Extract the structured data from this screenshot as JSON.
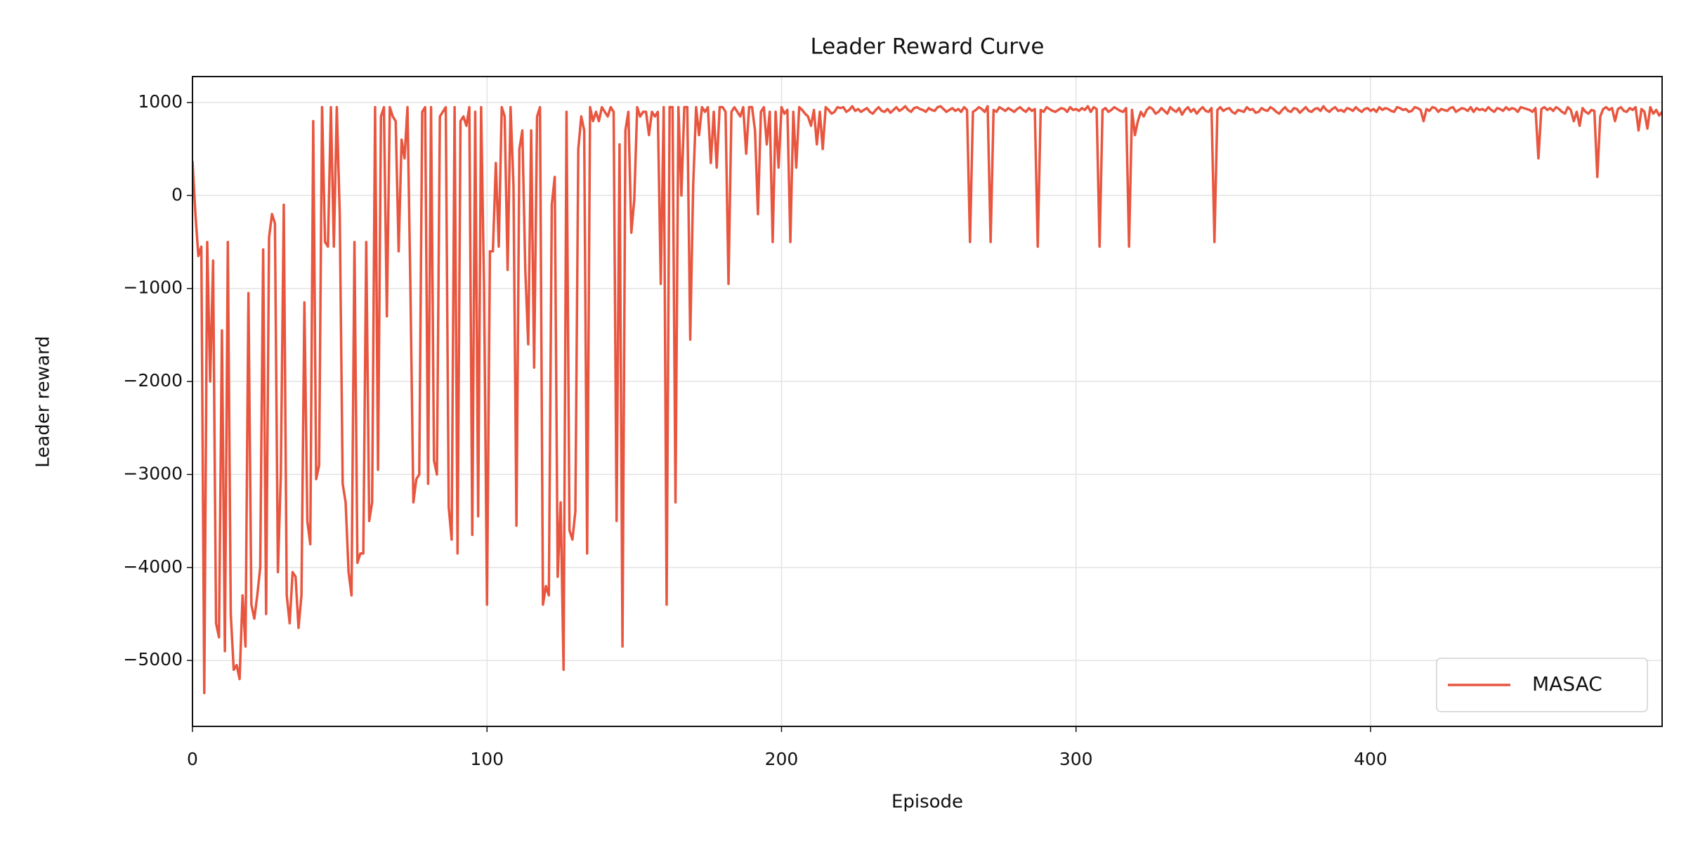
{
  "chart_data": {
    "type": "line",
    "title": "Leader Reward Curve",
    "x_label": "Episode",
    "y_label": "Leader reward",
    "x": [
      0,
      1,
      2,
      3,
      4,
      5,
      6,
      7,
      8,
      9,
      10,
      11,
      12,
      13,
      14,
      15,
      16,
      17,
      18,
      19,
      20,
      21,
      22,
      23,
      24,
      25,
      26,
      27,
      28,
      29,
      30,
      31,
      32,
      33,
      34,
      35,
      36,
      37,
      38,
      39,
      40,
      41,
      42,
      43,
      44,
      45,
      46,
      47,
      48,
      49,
      50,
      51,
      52,
      53,
      54,
      55,
      56,
      57,
      58,
      59,
      60,
      61,
      62,
      63,
      64,
      65,
      66,
      67,
      68,
      69,
      70,
      71,
      72,
      73,
      74,
      75,
      76,
      77,
      78,
      79,
      80,
      81,
      82,
      83,
      84,
      85,
      86,
      87,
      88,
      89,
      90,
      91,
      92,
      93,
      94,
      95,
      96,
      97,
      98,
      99,
      100,
      101,
      102,
      103,
      104,
      105,
      106,
      107,
      108,
      109,
      110,
      111,
      112,
      113,
      114,
      115,
      116,
      117,
      118,
      119,
      120,
      121,
      122,
      123,
      124,
      125,
      126,
      127,
      128,
      129,
      130,
      131,
      132,
      133,
      134,
      135,
      136,
      137,
      138,
      139,
      140,
      141,
      142,
      143,
      144,
      145,
      146,
      147,
      148,
      149,
      150,
      151,
      152,
      153,
      154,
      155,
      156,
      157,
      158,
      159,
      160,
      161,
      162,
      163,
      164,
      165,
      166,
      167,
      168,
      169,
      170,
      171,
      172,
      173,
      174,
      175,
      176,
      177,
      178,
      179,
      180,
      181,
      182,
      183,
      184,
      185,
      186,
      187,
      188,
      189,
      190,
      191,
      192,
      193,
      194,
      195,
      196,
      197,
      198,
      199,
      200,
      201,
      202,
      203,
      204,
      205,
      206,
      207,
      208,
      209,
      210,
      211,
      212,
      213,
      214,
      215,
      216,
      217,
      218,
      219,
      220,
      221,
      222,
      223,
      224,
      225,
      226,
      227,
      228,
      229,
      230,
      231,
      232,
      233,
      234,
      235,
      236,
      237,
      238,
      239,
      240,
      241,
      242,
      243,
      244,
      245,
      246,
      247,
      248,
      249,
      250,
      251,
      252,
      253,
      254,
      255,
      256,
      257,
      258,
      259,
      260,
      261,
      262,
      263,
      264,
      265,
      266,
      267,
      268,
      269,
      270,
      271,
      272,
      273,
      274,
      275,
      276,
      277,
      278,
      279,
      280,
      281,
      282,
      283,
      284,
      285,
      286,
      287,
      288,
      289,
      290,
      291,
      292,
      293,
      294,
      295,
      296,
      297,
      298,
      299,
      300,
      301,
      302,
      303,
      304,
      305,
      306,
      307,
      308,
      309,
      310,
      311,
      312,
      313,
      314,
      315,
      316,
      317,
      318,
      319,
      320,
      321,
      322,
      323,
      324,
      325,
      326,
      327,
      328,
      329,
      330,
      331,
      332,
      333,
      334,
      335,
      336,
      337,
      338,
      339,
      340,
      341,
      342,
      343,
      344,
      345,
      346,
      347,
      348,
      349,
      350,
      351,
      352,
      353,
      354,
      355,
      356,
      357,
      358,
      359,
      360,
      361,
      362,
      363,
      364,
      365,
      366,
      367,
      368,
      369,
      370,
      371,
      372,
      373,
      374,
      375,
      376,
      377,
      378,
      379,
      380,
      381,
      382,
      383,
      384,
      385,
      386,
      387,
      388,
      389,
      390,
      391,
      392,
      393,
      394,
      395,
      396,
      397,
      398,
      399,
      400,
      401,
      402,
      403,
      404,
      405,
      406,
      407,
      408,
      409,
      410,
      411,
      412,
      413,
      414,
      415,
      416,
      417,
      418,
      419,
      420,
      421,
      422,
      423,
      424,
      425,
      426,
      427,
      428,
      429,
      430,
      431,
      432,
      433,
      434,
      435,
      436,
      437,
      438,
      439,
      440,
      441,
      442,
      443,
      444,
      445,
      446,
      447,
      448,
      449,
      450,
      451,
      452,
      453,
      454,
      455,
      456,
      457,
      458,
      459,
      460,
      461,
      462,
      463,
      464,
      465,
      466,
      467,
      468,
      469,
      470,
      471,
      472,
      473,
      474,
      475,
      476,
      477,
      478,
      479,
      480,
      481,
      482,
      483,
      484,
      485,
      486,
      487,
      488,
      489,
      490,
      491,
      492,
      493,
      494,
      495,
      496,
      497,
      498,
      499
    ],
    "series": [
      {
        "name": "MASAC",
        "color": "#e8563f",
        "values": [
          370,
          -200,
          -650,
          -550,
          -5350,
          -500,
          -2000,
          -700,
          -4600,
          -4750,
          -1450,
          -4900,
          -500,
          -4500,
          -5100,
          -5050,
          -5200,
          -4300,
          -4850,
          -1050,
          -4400,
          -4550,
          -4300,
          -4000,
          -580,
          -4500,
          -450,
          -200,
          -300,
          -4050,
          -3000,
          -100,
          -4300,
          -4600,
          -4050,
          -4100,
          -4650,
          -4300,
          -1150,
          -3500,
          -3750,
          800,
          -3050,
          -2900,
          950,
          -500,
          -550,
          950,
          -550,
          950,
          -200,
          -3100,
          -3300,
          -4050,
          -4300,
          -500,
          -3950,
          -3850,
          -3850,
          -500,
          -3500,
          -3300,
          950,
          -2950,
          850,
          950,
          -1300,
          950,
          850,
          800,
          -600,
          600,
          400,
          950,
          -1000,
          -3300,
          -3050,
          -3000,
          900,
          950,
          -3100,
          950,
          -2850,
          -3000,
          850,
          900,
          950,
          -3350,
          -3700,
          950,
          -3850,
          800,
          850,
          750,
          950,
          -3650,
          900,
          -3450,
          950,
          -1000,
          -4400,
          -600,
          -600,
          350,
          -550,
          950,
          850,
          -800,
          950,
          100,
          -3550,
          500,
          700,
          -800,
          -1600,
          700,
          -1850,
          850,
          950,
          -4400,
          -4200,
          -4300,
          -100,
          200,
          -4100,
          -3300,
          -5100,
          900,
          -3600,
          -3700,
          -3400,
          500,
          850,
          700,
          -3850,
          950,
          800,
          900,
          800,
          950,
          900,
          850,
          950,
          900,
          -3500,
          550,
          -4850,
          700,
          900,
          -400,
          -50,
          950,
          850,
          900,
          900,
          650,
          900,
          850,
          900,
          -950,
          950,
          -4400,
          950,
          950,
          -3300,
          950,
          0,
          950,
          950,
          -1550,
          100,
          950,
          650,
          950,
          900,
          950,
          350,
          900,
          300,
          950,
          950,
          900,
          -950,
          900,
          950,
          900,
          850,
          950,
          450,
          950,
          950,
          700,
          -200,
          900,
          950,
          550,
          900,
          -500,
          900,
          300,
          950,
          880,
          920,
          -500,
          900,
          300,
          950,
          920,
          880,
          850,
          750,
          920,
          550,
          900,
          500,
          950,
          920,
          880,
          900,
          950,
          940,
          950,
          900,
          920,
          960,
          910,
          930,
          900,
          920,
          940,
          900,
          880,
          920,
          950,
          910,
          900,
          930,
          890,
          920,
          950,
          910,
          930,
          960,
          920,
          900,
          940,
          950,
          930,
          920,
          900,
          940,
          920,
          910,
          950,
          960,
          930,
          900,
          920,
          940,
          910,
          930,
          900,
          950,
          920,
          -500,
          900,
          920,
          950,
          930,
          900,
          960,
          -500,
          920,
          900,
          950,
          930,
          910,
          940,
          920,
          900,
          930,
          950,
          920,
          900,
          940,
          910,
          930,
          -550,
          920,
          900,
          950,
          930,
          910,
          900,
          920,
          940,
          930,
          900,
          950,
          920,
          930,
          910,
          940,
          920,
          960,
          900,
          950,
          930,
          -550,
          920,
          940,
          900,
          920,
          950,
          930,
          910,
          900,
          940,
          -550,
          920,
          650,
          800,
          900,
          850,
          920,
          950,
          930,
          880,
          900,
          940,
          910,
          880,
          950,
          920,
          900,
          940,
          870,
          920,
          950,
          900,
          930,
          880,
          920,
          950,
          910,
          900,
          940,
          -500,
          920,
          950,
          910,
          930,
          940,
          900,
          880,
          920,
          910,
          900,
          950,
          920,
          930,
          890,
          900,
          940,
          920,
          910,
          950,
          930,
          900,
          880,
          920,
          950,
          910,
          900,
          940,
          930,
          890,
          920,
          950,
          910,
          900,
          930,
          940,
          910,
          960,
          920,
          900,
          930,
          950,
          910,
          920,
          900,
          940,
          930,
          910,
          950,
          920,
          900,
          930,
          940,
          910,
          930,
          900,
          950,
          920,
          940,
          930,
          910,
          900,
          950,
          940,
          920,
          930,
          900,
          910,
          950,
          940,
          920,
          800,
          930,
          910,
          950,
          940,
          900,
          930,
          920,
          910,
          940,
          950,
          900,
          920,
          940,
          930,
          910,
          950,
          900,
          940,
          920,
          930,
          910,
          950,
          920,
          900,
          940,
          930,
          910,
          950,
          920,
          940,
          930,
          900,
          950,
          940,
          930,
          920,
          900,
          940,
          400,
          930,
          950,
          920,
          940,
          910,
          950,
          930,
          900,
          880,
          950,
          920,
          800,
          900,
          750,
          940,
          900,
          880,
          920,
          910,
          200,
          850,
          930,
          950,
          920,
          940,
          800,
          930,
          950,
          910,
          900,
          940,
          920,
          950,
          700,
          930,
          900,
          720,
          950,
          880,
          920,
          860,
          900
        ]
      }
    ],
    "xlim": [
      0,
      499
    ],
    "ylim": [
      -5709,
      1279
    ],
    "xticks": [
      0,
      100,
      200,
      300,
      400
    ],
    "yticks": [
      {
        "value": -5000,
        "label": "−5000"
      },
      {
        "value": -4000,
        "label": "−4000"
      },
      {
        "value": -3000,
        "label": "−3000"
      },
      {
        "value": -2000,
        "label": "−2000"
      },
      {
        "value": -1000,
        "label": "−1000"
      },
      0,
      1000
    ],
    "grid": true,
    "legend": "lower right"
  }
}
